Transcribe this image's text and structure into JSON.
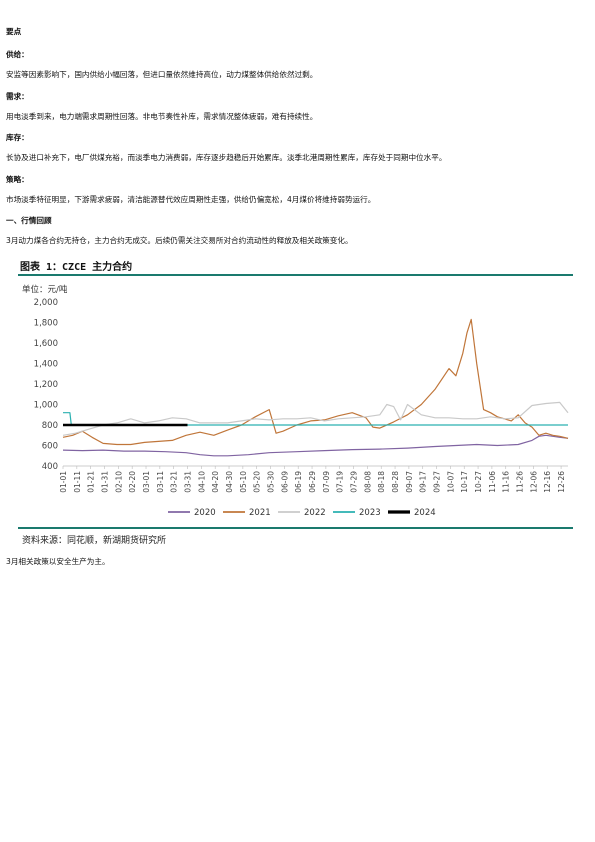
{
  "doc": {
    "heading_main": "要点",
    "supply_label": "供给：",
    "supply_text": "安监等因素影响下，国内供给小幅回落，但进口量依然维持高位，动力煤整体供给依然过剩。",
    "demand_label": "需求：",
    "demand_text": "用电淡季到来，电力端需求周期性回落。非电节奏性补库，需求情况整体疲弱，难有持续性。",
    "inventory_label": "库存：",
    "inventory_text": "长协及进口补充下，电厂供煤充裕，而淡季电力消费弱，库存逐步趋稳后开始累库。淡季北港周期性累库，库存处于同期中位水平。",
    "strategy_label": "策略：",
    "strategy_text": "市场淡季特征明显，下游需求疲弱，清洁能源替代效应周期性走强，供给仍偏宽松，4月煤价将维持弱势运行。",
    "section1_heading": "一、行情回顾",
    "section1_text": "3月动力煤各合约无持仓，主力合约无成交。后续仍需关注交易所对合约流动性的释放及相关政策变化。",
    "figure_title": "图表 1：CZCE 主力合约",
    "unit_label": "单位：元/吨",
    "source_text": "资料来源：同花顺，新湖期货研究所",
    "footer_text": "3月相关政策以安全生产为主。"
  },
  "chart_data": {
    "type": "line",
    "title": "",
    "xlabel": "",
    "ylabel": "单位：元/吨",
    "ylim": [
      400,
      2000
    ],
    "yticks": [
      "400",
      "600",
      "800",
      "1,000",
      "1,200",
      "1,400",
      "1,600",
      "1,800",
      "2,000"
    ],
    "ytick_values": [
      400,
      600,
      800,
      1000,
      1200,
      1400,
      1600,
      1800,
      2000
    ],
    "x_day_range": [
      1,
      366
    ],
    "xticks": [
      {
        "label": "01-01",
        "day": 1
      },
      {
        "label": "01-11",
        "day": 11
      },
      {
        "label": "01-21",
        "day": 21
      },
      {
        "label": "01-31",
        "day": 31
      },
      {
        "label": "02-10",
        "day": 41
      },
      {
        "label": "02-20",
        "day": 51
      },
      {
        "label": "03-01",
        "day": 61
      },
      {
        "label": "03-11",
        "day": 71
      },
      {
        "label": "03-21",
        "day": 81
      },
      {
        "label": "03-31",
        "day": 91
      },
      {
        "label": "04-10",
        "day": 101
      },
      {
        "label": "04-20",
        "day": 111
      },
      {
        "label": "04-30",
        "day": 121
      },
      {
        "label": "05-10",
        "day": 131
      },
      {
        "label": "05-20",
        "day": 141
      },
      {
        "label": "05-30",
        "day": 151
      },
      {
        "label": "06-09",
        "day": 161
      },
      {
        "label": "06-19",
        "day": 171
      },
      {
        "label": "06-29",
        "day": 181
      },
      {
        "label": "07-09",
        "day": 191
      },
      {
        "label": "07-19",
        "day": 201
      },
      {
        "label": "07-29",
        "day": 211
      },
      {
        "label": "08-08",
        "day": 221
      },
      {
        "label": "08-18",
        "day": 231
      },
      {
        "label": "08-28",
        "day": 241
      },
      {
        "label": "09-07",
        "day": 251
      },
      {
        "label": "09-17",
        "day": 261
      },
      {
        "label": "09-27",
        "day": 271
      },
      {
        "label": "10-07",
        "day": 281
      },
      {
        "label": "10-17",
        "day": 291
      },
      {
        "label": "10-27",
        "day": 301
      },
      {
        "label": "11-06",
        "day": 311
      },
      {
        "label": "11-16",
        "day": 321
      },
      {
        "label": "11-26",
        "day": 331
      },
      {
        "label": "12-06",
        "day": 341
      },
      {
        "label": "12-16",
        "day": 351
      },
      {
        "label": "12-26",
        "day": 361
      }
    ],
    "grid": false,
    "legend_position": "bottom",
    "series": [
      {
        "name": "2020",
        "color": "#8064a2",
        "width": 1.2,
        "x": [
          1,
          15,
          30,
          45,
          60,
          75,
          90,
          100,
          110,
          120,
          135,
          150,
          170,
          190,
          210,
          230,
          250,
          270,
          285,
          300,
          315,
          330,
          340,
          345,
          350,
          355,
          360,
          366
        ],
        "y": [
          555,
          550,
          555,
          545,
          545,
          540,
          530,
          510,
          500,
          500,
          510,
          530,
          540,
          550,
          560,
          565,
          575,
          590,
          600,
          610,
          600,
          610,
          650,
          690,
          700,
          690,
          680,
          670
        ]
      },
      {
        "name": "2021",
        "color": "#c0763a",
        "width": 1.2,
        "x": [
          1,
          8,
          15,
          22,
          30,
          40,
          50,
          60,
          70,
          80,
          90,
          100,
          110,
          120,
          130,
          140,
          150,
          155,
          160,
          170,
          180,
          190,
          200,
          210,
          220,
          225,
          230,
          240,
          250,
          260,
          270,
          280,
          285,
          290,
          293,
          296,
          300,
          305,
          310,
          315,
          320,
          325,
          330,
          335,
          340,
          345,
          350,
          355,
          360,
          366
        ],
        "y": [
          680,
          700,
          740,
          680,
          620,
          610,
          610,
          630,
          640,
          650,
          700,
          730,
          700,
          750,
          800,
          880,
          950,
          720,
          740,
          800,
          840,
          850,
          890,
          920,
          870,
          780,
          770,
          830,
          900,
          1000,
          1150,
          1350,
          1280,
          1500,
          1700,
          1830,
          1400,
          950,
          920,
          880,
          860,
          840,
          900,
          820,
          780,
          700,
          720,
          700,
          690,
          670
        ]
      },
      {
        "name": "2022",
        "color": "#c9c9c9",
        "width": 1.2,
        "x": [
          1,
          10,
          20,
          30,
          40,
          50,
          60,
          70,
          80,
          90,
          100,
          110,
          120,
          130,
          140,
          150,
          160,
          170,
          180,
          190,
          200,
          210,
          220,
          230,
          235,
          240,
          245,
          250,
          260,
          270,
          280,
          290,
          300,
          310,
          320,
          330,
          340,
          350,
          360,
          366
        ],
        "y": [
          700,
          720,
          760,
          800,
          820,
          860,
          820,
          840,
          870,
          860,
          820,
          820,
          820,
          840,
          860,
          850,
          860,
          860,
          870,
          840,
          860,
          870,
          880,
          900,
          1000,
          980,
          850,
          1000,
          900,
          870,
          870,
          860,
          860,
          880,
          860,
          870,
          990,
          1010,
          1020,
          920
        ]
      },
      {
        "name": "2023",
        "color": "#2ab0b0",
        "width": 1.2,
        "x": [
          1,
          6,
          7,
          30,
          90,
          150,
          210,
          270,
          330,
          366
        ],
        "y": [
          920,
          920,
          800,
          800,
          800,
          800,
          800,
          800,
          800,
          800
        ]
      },
      {
        "name": "2024",
        "color": "#000000",
        "width": 2.6,
        "x": [
          1,
          91
        ],
        "y": [
          800,
          800
        ]
      }
    ]
  }
}
